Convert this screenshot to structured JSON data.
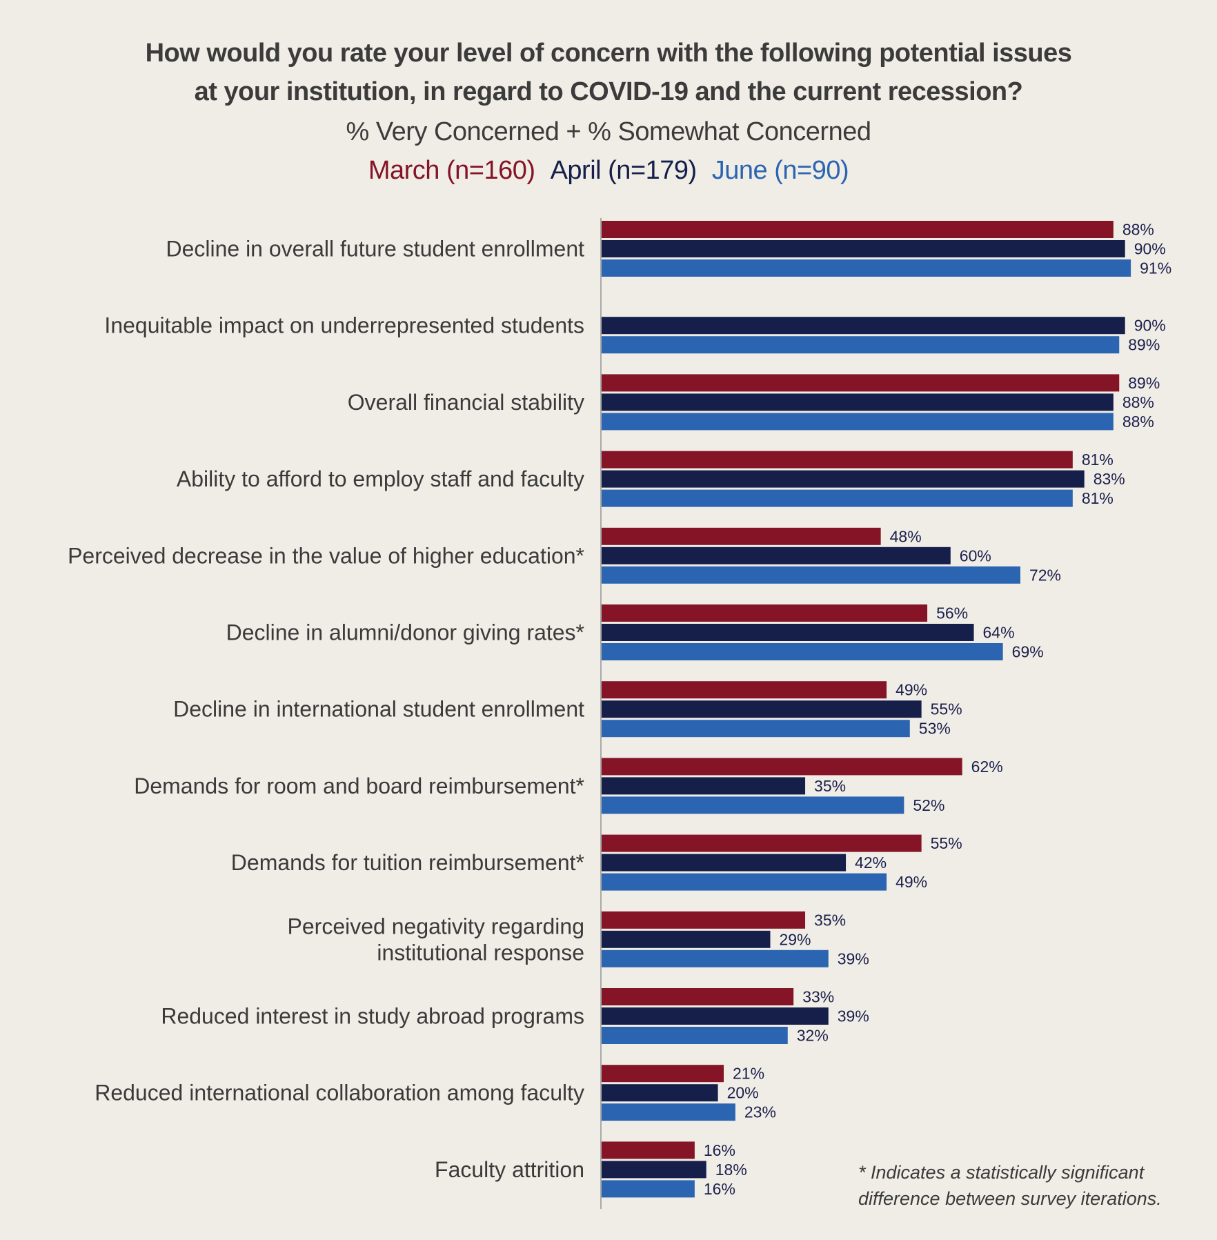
{
  "chart_data": {
    "type": "bar",
    "orientation": "horizontal",
    "title": "How would you rate your level of concern with the following potential issues at your institution, in regard to COVID-19 and the current recession?",
    "title_line1": "How would you rate your level of concern with the following potential issues",
    "title_line2": "at your institution, in regard to COVID-19 and the current recession?",
    "subtitle": "% Very Concerned + % Somewhat Concerned",
    "value_suffix": "%",
    "xlim": [
      0,
      100
    ],
    "grid": false,
    "legend_position": "top",
    "categories": [
      "Decline in overall future student enrollment",
      "Inequitable impact on underrepresented students",
      "Overall financial stability",
      "Ability to afford to employ staff and faculty",
      "Perceived decrease in the value of higher education*",
      "Decline in alumni/donor giving rates*",
      "Decline in international student enrollment",
      "Demands for room and board reimbursement*",
      "Demands for tuition reimbursement*",
      "Perceived negativity regarding institutional response",
      "Reduced interest in study abroad programs",
      "Reduced international collaboration among faculty",
      "Faculty attrition"
    ],
    "category_lines": [
      [
        "Decline in overall future student enrollment"
      ],
      [
        "Inequitable impact on underrepresented students"
      ],
      [
        "Overall financial stability"
      ],
      [
        "Ability to afford to employ staff and faculty"
      ],
      [
        "Perceived decrease in the value of higher education*"
      ],
      [
        "Decline in alumni/donor giving rates*"
      ],
      [
        "Decline in international student enrollment"
      ],
      [
        "Demands for room and board reimbursement*"
      ],
      [
        "Demands for tuition reimbursement*"
      ],
      [
        "Perceived negativity regarding",
        "institutional response"
      ],
      [
        "Reduced interest in study abroad programs"
      ],
      [
        "Reduced international collaboration among faculty"
      ],
      [
        "Faculty attrition"
      ]
    ],
    "series": [
      {
        "name": "March (n=160)",
        "color": "#841426",
        "values": [
          88,
          null,
          89,
          81,
          48,
          56,
          49,
          62,
          55,
          35,
          33,
          21,
          16
        ]
      },
      {
        "name": "April (n=179)",
        "color": "#161e4a",
        "values": [
          90,
          90,
          88,
          83,
          60,
          64,
          55,
          35,
          42,
          29,
          39,
          20,
          18
        ]
      },
      {
        "name": "June (n=90)",
        "color": "#2b65b1",
        "values": [
          91,
          89,
          88,
          81,
          72,
          69,
          53,
          52,
          49,
          39,
          32,
          23,
          16
        ]
      }
    ],
    "footnote_line1": "* Indicates a statistically significant",
    "footnote_line2": "difference between survey iterations."
  }
}
